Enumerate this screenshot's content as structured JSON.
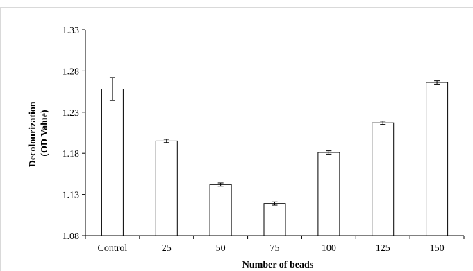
{
  "chart_data": {
    "type": "bar",
    "title": "",
    "xlabel": "Number of beads",
    "ylabel_lines": [
      "Decolourization",
      "(OD Value)"
    ],
    "categories": [
      "Control",
      "25",
      "50",
      "75",
      "100",
      "125",
      "150"
    ],
    "values": [
      1.258,
      1.195,
      1.142,
      1.119,
      1.181,
      1.217,
      1.266
    ],
    "error": [
      0.014,
      0.002,
      0.002,
      0.002,
      0.002,
      0.002,
      0.002
    ],
    "ylim": [
      1.08,
      1.33
    ],
    "yticks": [
      "1.08",
      "1.13",
      "1.18",
      "1.23",
      "1.28",
      "1.33"
    ],
    "grid": false,
    "legend": "none",
    "colors": {
      "bar_fill": "#ffffff",
      "bar_stroke": "#000000",
      "axis": "#000000",
      "border": "#d9d9d9"
    }
  }
}
